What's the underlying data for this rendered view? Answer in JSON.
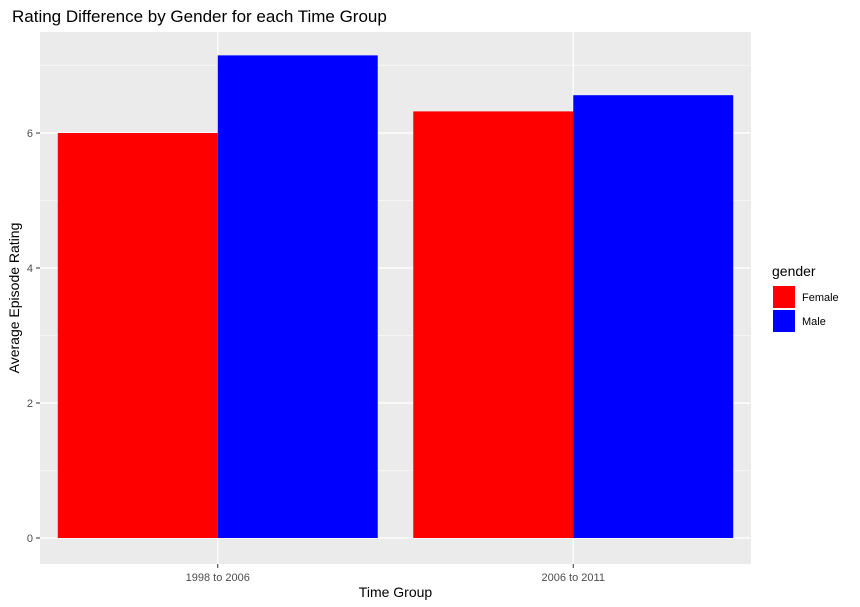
{
  "chart_data": {
    "type": "bar",
    "title": "Rating Difference by Gender for each Time Group",
    "xlabel": "Time Group",
    "ylabel": "Average Episode Rating",
    "categories": [
      "1998 to 2006",
      "2006 to 2011"
    ],
    "series": [
      {
        "name": "Female",
        "color": "#ff0000",
        "values": [
          6.0,
          6.32
        ]
      },
      {
        "name": "Male",
        "color": "#0000ff",
        "values": [
          7.15,
          6.56
        ]
      }
    ],
    "ylim": [
      0,
      7.5
    ],
    "yticks": [
      0,
      2,
      4,
      6
    ],
    "grid": true,
    "legend": {
      "title": "gender",
      "position": "right"
    },
    "panel_background": "#ebebeb"
  }
}
